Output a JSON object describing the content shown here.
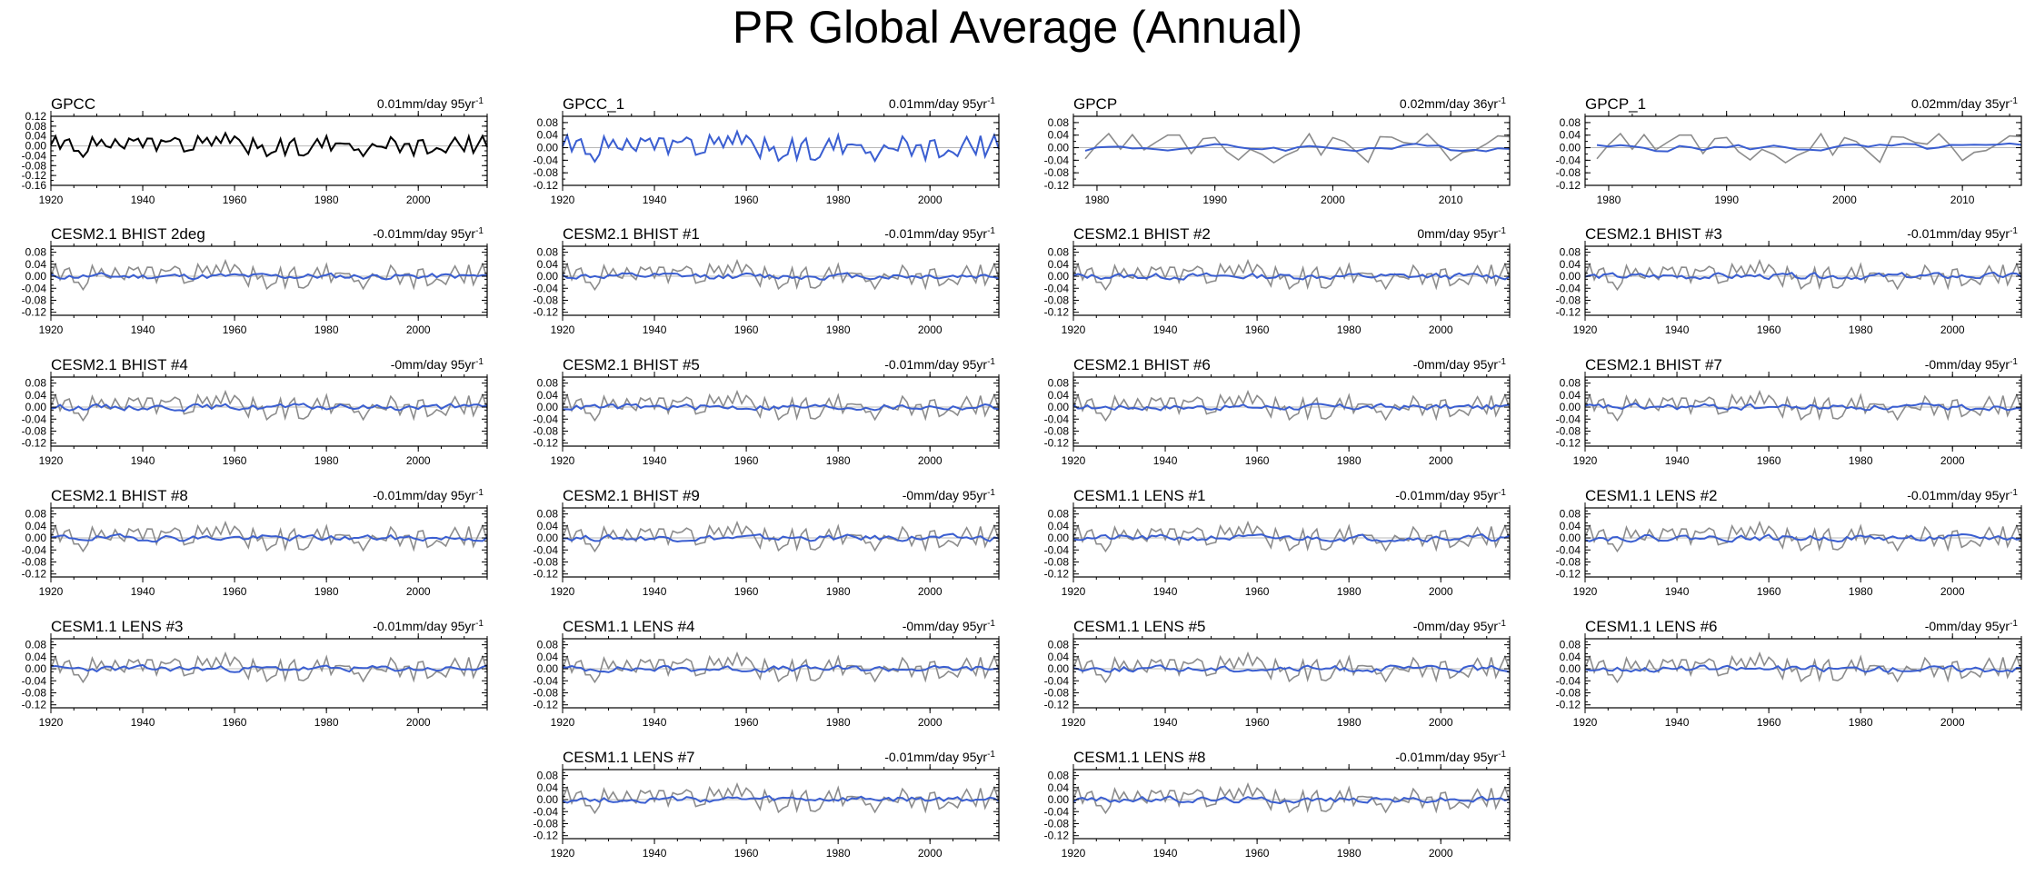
{
  "title": "PR Global Average (Annual)",
  "chart_data": [
    {
      "type": "line",
      "name": "GPCC",
      "trend_text": "0.01mm/day 95yr",
      "trend_exp": "-1",
      "xlim": [
        1920,
        2015
      ],
      "xticks": [
        "1920",
        "1940",
        "1960",
        "1980",
        "2000"
      ],
      "ylim": [
        -0.16,
        0.12
      ],
      "yticks": [
        "0.12",
        "0.08",
        "0.04",
        "0.00",
        "-0.04",
        "-0.08",
        "-0.12",
        "-0.16"
      ],
      "primary_color": "#000000",
      "series": [
        {
          "name": "GPCC",
          "kind": "obs",
          "start": 1920,
          "seed": 1,
          "amp": 0.05
        }
      ]
    },
    {
      "type": "line",
      "name": "GPCC_1",
      "trend_text": "0.01mm/day 95yr",
      "trend_exp": "-1",
      "xlim": [
        1920,
        2015
      ],
      "xticks": [
        "1920",
        "1940",
        "1960",
        "1980",
        "2000"
      ],
      "ylim": [
        -0.12,
        0.1
      ],
      "yticks": [
        "0.08",
        "0.04",
        "0.00",
        "-0.04",
        "-0.08",
        "-0.12"
      ],
      "primary_color": "#3a5ed1",
      "series": [
        {
          "name": "GPCC_1",
          "kind": "obs",
          "start": 1920,
          "seed": 1,
          "amp": 0.05
        }
      ]
    },
    {
      "type": "line",
      "name": "GPCP",
      "trend_text": "0.02mm/day 36yr",
      "trend_exp": "-1",
      "xlim": [
        1978,
        2015
      ],
      "xticks": [
        "1980",
        "1990",
        "2000",
        "2010"
      ],
      "ylim": [
        -0.12,
        0.1
      ],
      "yticks": [
        "0.08",
        "0.04",
        "0.00",
        "-0.04",
        "-0.08",
        "-0.12"
      ],
      "primary_color": "#3a5ed1",
      "series": [
        {
          "name": "GPCC",
          "kind": "obs",
          "start": 1979,
          "seed": 3,
          "amp": 0.055
        },
        {
          "name": "GPCP",
          "kind": "model",
          "start": 1979,
          "seed": 4,
          "amp": 0.018
        }
      ]
    },
    {
      "type": "line",
      "name": "GPCP_1",
      "trend_text": "0.02mm/day 35yr",
      "trend_exp": "-1",
      "xlim": [
        1978,
        2015
      ],
      "xticks": [
        "1980",
        "1990",
        "2000",
        "2010"
      ],
      "ylim": [
        -0.12,
        0.1
      ],
      "yticks": [
        "0.08",
        "0.04",
        "0.00",
        "-0.04",
        "-0.08",
        "-0.12"
      ],
      "primary_color": "#3a5ed1",
      "series": [
        {
          "name": "GPCC",
          "kind": "obs",
          "start": 1979,
          "seed": 3,
          "amp": 0.055
        },
        {
          "name": "GPCP_1",
          "kind": "model",
          "start": 1979,
          "seed": 5,
          "amp": 0.018
        }
      ]
    },
    {
      "type": "line",
      "name": "CESM2.1 BHIST 2deg",
      "trend_text": "-0.01mm/day 95yr",
      "trend_exp": "-1",
      "xlim": [
        1920,
        2015
      ],
      "xticks": [
        "1920",
        "1940",
        "1960",
        "1980",
        "2000"
      ],
      "ylim": [
        -0.13,
        0.1
      ],
      "yticks": [
        "0.08",
        "0.04",
        "0.00",
        "-0.04",
        "-0.08",
        "-0.12"
      ],
      "primary_color": "#3a5ed1",
      "series": [
        {
          "name": "GPCC",
          "kind": "obs",
          "start": 1920,
          "seed": 1,
          "amp": 0.05
        },
        {
          "name": "CESM2.1 BHIST 2deg",
          "kind": "model",
          "start": 1920,
          "seed": 11,
          "amp": 0.015
        }
      ]
    },
    {
      "type": "line",
      "name": "CESM2.1 BHIST #1",
      "trend_text": "-0.01mm/day 95yr",
      "trend_exp": "-1",
      "xlim": [
        1920,
        2015
      ],
      "xticks": [
        "1920",
        "1940",
        "1960",
        "1980",
        "2000"
      ],
      "ylim": [
        -0.13,
        0.1
      ],
      "yticks": [
        "0.08",
        "0.04",
        "0.00",
        "-0.04",
        "-0.08",
        "-0.12"
      ],
      "primary_color": "#3a5ed1",
      "series": [
        {
          "name": "GPCC",
          "kind": "obs",
          "start": 1920,
          "seed": 1,
          "amp": 0.05
        },
        {
          "name": "CESM2.1 BHIST #1",
          "kind": "model",
          "start": 1920,
          "seed": 12,
          "amp": 0.015
        }
      ]
    },
    {
      "type": "line",
      "name": "CESM2.1 BHIST #2",
      "trend_text": "0mm/day 95yr",
      "trend_exp": "-1",
      "xlim": [
        1920,
        2015
      ],
      "xticks": [
        "1920",
        "1940",
        "1960",
        "1980",
        "2000"
      ],
      "ylim": [
        -0.13,
        0.1
      ],
      "yticks": [
        "0.08",
        "0.04",
        "0.00",
        "-0.04",
        "-0.08",
        "-0.12"
      ],
      "primary_color": "#3a5ed1",
      "series": [
        {
          "name": "GPCC",
          "kind": "obs",
          "start": 1920,
          "seed": 1,
          "amp": 0.05
        },
        {
          "name": "CESM2.1 BHIST #2",
          "kind": "model",
          "start": 1920,
          "seed": 13,
          "amp": 0.015
        }
      ]
    },
    {
      "type": "line",
      "name": "CESM2.1 BHIST #3",
      "trend_text": "-0.01mm/day 95yr",
      "trend_exp": "-1",
      "xlim": [
        1920,
        2015
      ],
      "xticks": [
        "1920",
        "1940",
        "1960",
        "1980",
        "2000"
      ],
      "ylim": [
        -0.13,
        0.1
      ],
      "yticks": [
        "0.08",
        "0.04",
        "0.00",
        "-0.04",
        "-0.08",
        "-0.12"
      ],
      "primary_color": "#3a5ed1",
      "series": [
        {
          "name": "GPCC",
          "kind": "obs",
          "start": 1920,
          "seed": 1,
          "amp": 0.05
        },
        {
          "name": "CESM2.1 BHIST #3",
          "kind": "model",
          "start": 1920,
          "seed": 14,
          "amp": 0.015
        }
      ]
    },
    {
      "type": "line",
      "name": "CESM2.1 BHIST #4",
      "trend_text": "-0mm/day 95yr",
      "trend_exp": "-1",
      "xlim": [
        1920,
        2015
      ],
      "xticks": [
        "1920",
        "1940",
        "1960",
        "1980",
        "2000"
      ],
      "ylim": [
        -0.13,
        0.1
      ],
      "yticks": [
        "0.08",
        "0.04",
        "0.00",
        "-0.04",
        "-0.08",
        "-0.12"
      ],
      "primary_color": "#3a5ed1",
      "series": [
        {
          "name": "GPCC",
          "kind": "obs",
          "start": 1920,
          "seed": 1,
          "amp": 0.05
        },
        {
          "name": "CESM2.1 BHIST #4",
          "kind": "model",
          "start": 1920,
          "seed": 15,
          "amp": 0.015
        }
      ]
    },
    {
      "type": "line",
      "name": "CESM2.1 BHIST #5",
      "trend_text": "-0.01mm/day 95yr",
      "trend_exp": "-1",
      "xlim": [
        1920,
        2015
      ],
      "xticks": [
        "1920",
        "1940",
        "1960",
        "1980",
        "2000"
      ],
      "ylim": [
        -0.13,
        0.1
      ],
      "yticks": [
        "0.08",
        "0.04",
        "0.00",
        "-0.04",
        "-0.08",
        "-0.12"
      ],
      "primary_color": "#3a5ed1",
      "series": [
        {
          "name": "GPCC",
          "kind": "obs",
          "start": 1920,
          "seed": 1,
          "amp": 0.05
        },
        {
          "name": "CESM2.1 BHIST #5",
          "kind": "model",
          "start": 1920,
          "seed": 16,
          "amp": 0.015
        }
      ]
    },
    {
      "type": "line",
      "name": "CESM2.1 BHIST #6",
      "trend_text": "-0mm/day 95yr",
      "trend_exp": "-1",
      "xlim": [
        1920,
        2015
      ],
      "xticks": [
        "1920",
        "1940",
        "1960",
        "1980",
        "2000"
      ],
      "ylim": [
        -0.13,
        0.1
      ],
      "yticks": [
        "0.08",
        "0.04",
        "0.00",
        "-0.04",
        "-0.08",
        "-0.12"
      ],
      "primary_color": "#3a5ed1",
      "series": [
        {
          "name": "GPCC",
          "kind": "obs",
          "start": 1920,
          "seed": 1,
          "amp": 0.05
        },
        {
          "name": "CESM2.1 BHIST #6",
          "kind": "model",
          "start": 1920,
          "seed": 17,
          "amp": 0.015
        }
      ]
    },
    {
      "type": "line",
      "name": "CESM2.1 BHIST #7",
      "trend_text": "-0mm/day 95yr",
      "trend_exp": "-1",
      "xlim": [
        1920,
        2015
      ],
      "xticks": [
        "1920",
        "1940",
        "1960",
        "1980",
        "2000"
      ],
      "ylim": [
        -0.13,
        0.1
      ],
      "yticks": [
        "0.08",
        "0.04",
        "0.00",
        "-0.04",
        "-0.08",
        "-0.12"
      ],
      "primary_color": "#3a5ed1",
      "series": [
        {
          "name": "GPCC",
          "kind": "obs",
          "start": 1920,
          "seed": 1,
          "amp": 0.05
        },
        {
          "name": "CESM2.1 BHIST #7",
          "kind": "model",
          "start": 1920,
          "seed": 18,
          "amp": 0.015
        }
      ]
    },
    {
      "type": "line",
      "name": "CESM2.1 BHIST #8",
      "trend_text": "-0.01mm/day 95yr",
      "trend_exp": "-1",
      "xlim": [
        1920,
        2015
      ],
      "xticks": [
        "1920",
        "1940",
        "1960",
        "1980",
        "2000"
      ],
      "ylim": [
        -0.13,
        0.1
      ],
      "yticks": [
        "0.08",
        "0.04",
        "0.00",
        "-0.04",
        "-0.08",
        "-0.12"
      ],
      "primary_color": "#3a5ed1",
      "series": [
        {
          "name": "GPCC",
          "kind": "obs",
          "start": 1920,
          "seed": 1,
          "amp": 0.05
        },
        {
          "name": "CESM2.1 BHIST #8",
          "kind": "model",
          "start": 1920,
          "seed": 19,
          "amp": 0.015
        }
      ]
    },
    {
      "type": "line",
      "name": "CESM2.1 BHIST #9",
      "trend_text": "-0mm/day 95yr",
      "trend_exp": "-1",
      "xlim": [
        1920,
        2015
      ],
      "xticks": [
        "1920",
        "1940",
        "1960",
        "1980",
        "2000"
      ],
      "ylim": [
        -0.13,
        0.1
      ],
      "yticks": [
        "0.08",
        "0.04",
        "0.00",
        "-0.04",
        "-0.08",
        "-0.12"
      ],
      "primary_color": "#3a5ed1",
      "series": [
        {
          "name": "GPCC",
          "kind": "obs",
          "start": 1920,
          "seed": 1,
          "amp": 0.05
        },
        {
          "name": "CESM2.1 BHIST #9",
          "kind": "model",
          "start": 1920,
          "seed": 20,
          "amp": 0.015
        }
      ]
    },
    {
      "type": "line",
      "name": "CESM1.1 LENS #1",
      "trend_text": "-0.01mm/day 95yr",
      "trend_exp": "-1",
      "xlim": [
        1920,
        2015
      ],
      "xticks": [
        "1920",
        "1940",
        "1960",
        "1980",
        "2000"
      ],
      "ylim": [
        -0.13,
        0.1
      ],
      "yticks": [
        "0.08",
        "0.04",
        "0.00",
        "-0.04",
        "-0.08",
        "-0.12"
      ],
      "primary_color": "#3a5ed1",
      "series": [
        {
          "name": "GPCC",
          "kind": "obs",
          "start": 1920,
          "seed": 1,
          "amp": 0.05
        },
        {
          "name": "CESM1.1 LENS #1",
          "kind": "model",
          "start": 1920,
          "seed": 21,
          "amp": 0.015
        }
      ]
    },
    {
      "type": "line",
      "name": "CESM1.1 LENS #2",
      "trend_text": "-0.01mm/day 95yr",
      "trend_exp": "-1",
      "xlim": [
        1920,
        2015
      ],
      "xticks": [
        "1920",
        "1940",
        "1960",
        "1980",
        "2000"
      ],
      "ylim": [
        -0.13,
        0.1
      ],
      "yticks": [
        "0.08",
        "0.04",
        "0.00",
        "-0.04",
        "-0.08",
        "-0.12"
      ],
      "primary_color": "#3a5ed1",
      "series": [
        {
          "name": "GPCC",
          "kind": "obs",
          "start": 1920,
          "seed": 1,
          "amp": 0.05
        },
        {
          "name": "CESM1.1 LENS #2",
          "kind": "model",
          "start": 1920,
          "seed": 22,
          "amp": 0.015
        }
      ]
    },
    {
      "type": "line",
      "name": "CESM1.1 LENS #3",
      "trend_text": "-0.01mm/day 95yr",
      "trend_exp": "-1",
      "xlim": [
        1920,
        2015
      ],
      "xticks": [
        "1920",
        "1940",
        "1960",
        "1980",
        "2000"
      ],
      "ylim": [
        -0.13,
        0.1
      ],
      "yticks": [
        "0.08",
        "0.04",
        "0.00",
        "-0.04",
        "-0.08",
        "-0.12"
      ],
      "primary_color": "#3a5ed1",
      "series": [
        {
          "name": "GPCC",
          "kind": "obs",
          "start": 1920,
          "seed": 1,
          "amp": 0.05
        },
        {
          "name": "CESM1.1 LENS #3",
          "kind": "model",
          "start": 1920,
          "seed": 23,
          "amp": 0.015
        }
      ]
    },
    {
      "type": "line",
      "name": "CESM1.1 LENS #4",
      "trend_text": "-0mm/day 95yr",
      "trend_exp": "-1",
      "xlim": [
        1920,
        2015
      ],
      "xticks": [
        "1920",
        "1940",
        "1960",
        "1980",
        "2000"
      ],
      "ylim": [
        -0.13,
        0.1
      ],
      "yticks": [
        "0.08",
        "0.04",
        "0.00",
        "-0.04",
        "-0.08",
        "-0.12"
      ],
      "primary_color": "#3a5ed1",
      "series": [
        {
          "name": "GPCC",
          "kind": "obs",
          "start": 1920,
          "seed": 1,
          "amp": 0.05
        },
        {
          "name": "CESM1.1 LENS #4",
          "kind": "model",
          "start": 1920,
          "seed": 24,
          "amp": 0.015
        }
      ]
    },
    {
      "type": "line",
      "name": "CESM1.1 LENS #5",
      "trend_text": "-0mm/day 95yr",
      "trend_exp": "-1",
      "xlim": [
        1920,
        2015
      ],
      "xticks": [
        "1920",
        "1940",
        "1960",
        "1980",
        "2000"
      ],
      "ylim": [
        -0.13,
        0.1
      ],
      "yticks": [
        "0.08",
        "0.04",
        "0.00",
        "-0.04",
        "-0.08",
        "-0.12"
      ],
      "primary_color": "#3a5ed1",
      "series": [
        {
          "name": "GPCC",
          "kind": "obs",
          "start": 1920,
          "seed": 1,
          "amp": 0.05
        },
        {
          "name": "CESM1.1 LENS #5",
          "kind": "model",
          "start": 1920,
          "seed": 25,
          "amp": 0.015
        }
      ]
    },
    {
      "type": "line",
      "name": "CESM1.1 LENS #6",
      "trend_text": "-0mm/day 95yr",
      "trend_exp": "-1",
      "xlim": [
        1920,
        2015
      ],
      "xticks": [
        "1920",
        "1940",
        "1960",
        "1980",
        "2000"
      ],
      "ylim": [
        -0.13,
        0.1
      ],
      "yticks": [
        "0.08",
        "0.04",
        "0.00",
        "-0.04",
        "-0.08",
        "-0.12"
      ],
      "primary_color": "#3a5ed1",
      "series": [
        {
          "name": "GPCC",
          "kind": "obs",
          "start": 1920,
          "seed": 1,
          "amp": 0.05
        },
        {
          "name": "CESM1.1 LENS #6",
          "kind": "model",
          "start": 1920,
          "seed": 26,
          "amp": 0.015
        }
      ]
    },
    {
      "type": "line",
      "name": "CESM1.1 LENS #7",
      "trend_text": "-0.01mm/day 95yr",
      "trend_exp": "-1",
      "xlim": [
        1920,
        2015
      ],
      "xticks": [
        "1920",
        "1940",
        "1960",
        "1980",
        "2000"
      ],
      "ylim": [
        -0.13,
        0.1
      ],
      "yticks": [
        "0.08",
        "0.04",
        "0.00",
        "-0.04",
        "-0.08",
        "-0.12"
      ],
      "primary_color": "#3a5ed1",
      "series": [
        {
          "name": "GPCC",
          "kind": "obs",
          "start": 1920,
          "seed": 1,
          "amp": 0.05
        },
        {
          "name": "CESM1.1 LENS #7",
          "kind": "model",
          "start": 1920,
          "seed": 27,
          "amp": 0.015
        }
      ]
    },
    {
      "type": "line",
      "name": "CESM1.1 LENS #8",
      "trend_text": "-0.01mm/day 95yr",
      "trend_exp": "-1",
      "xlim": [
        1920,
        2015
      ],
      "xticks": [
        "1920",
        "1940",
        "1960",
        "1980",
        "2000"
      ],
      "ylim": [
        -0.13,
        0.1
      ],
      "yticks": [
        "0.08",
        "0.04",
        "0.00",
        "-0.04",
        "-0.08",
        "-0.12"
      ],
      "primary_color": "#3a5ed1",
      "series": [
        {
          "name": "GPCC",
          "kind": "obs",
          "start": 1920,
          "seed": 1,
          "amp": 0.05
        },
        {
          "name": "CESM1.1 LENS #8",
          "kind": "model",
          "start": 1920,
          "seed": 28,
          "amp": 0.015
        }
      ]
    }
  ]
}
